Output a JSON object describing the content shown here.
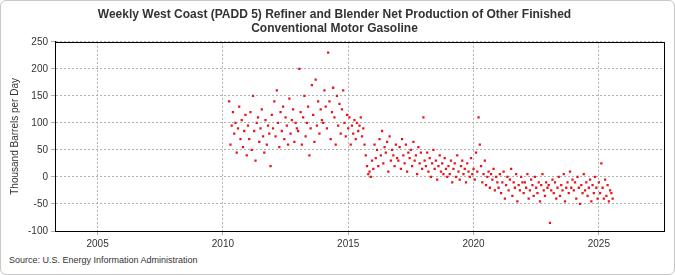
{
  "chart_data": {
    "type": "scatter",
    "title": [
      "Weekly West Coast (PADD 5) Refiner and Blender Net Production of Other Finished",
      "Conventional Motor Gasoline"
    ],
    "y_label": "Thousand Barrels per Day",
    "source": "Source: U.S. Energy Information Administration",
    "color": "#e8141b",
    "marker": "square",
    "grid": true,
    "xlim": [
      2003.3,
      2027.6
    ],
    "xticks": [
      2005,
      2010,
      2015,
      2020,
      2025
    ],
    "ylim": [
      -100,
      250
    ],
    "yticks": [
      -100,
      -50,
      0,
      50,
      100,
      150,
      200,
      250
    ],
    "x": [
      2010.25,
      2010.3,
      2010.35,
      2010.4,
      2010.45,
      2010.5,
      2010.55,
      2010.6,
      2010.65,
      2010.7,
      2010.75,
      2010.8,
      2010.85,
      2010.9,
      2010.95,
      2011,
      2011.05,
      2011.1,
      2011.15,
      2011.2,
      2011.25,
      2011.3,
      2011.35,
      2011.4,
      2011.45,
      2011.5,
      2011.55,
      2011.6,
      2011.65,
      2011.7,
      2011.75,
      2011.8,
      2011.85,
      2011.9,
      2011.95,
      2012,
      2012.05,
      2012.1,
      2012.15,
      2012.2,
      2012.25,
      2012.3,
      2012.35,
      2012.4,
      2012.45,
      2012.5,
      2012.55,
      2012.6,
      2012.65,
      2012.7,
      2012.75,
      2012.8,
      2012.85,
      2012.9,
      2012.95,
      2013,
      2013.05,
      2013.1,
      2013.15,
      2013.2,
      2013.25,
      2013.3,
      2013.35,
      2013.4,
      2013.45,
      2013.5,
      2013.55,
      2013.6,
      2013.65,
      2013.7,
      2013.75,
      2013.8,
      2013.85,
      2013.9,
      2013.95,
      2014,
      2014.05,
      2014.1,
      2014.15,
      2014.2,
      2014.25,
      2014.3,
      2014.35,
      2014.4,
      2014.45,
      2014.5,
      2014.55,
      2014.6,
      2014.65,
      2014.7,
      2014.75,
      2014.8,
      2014.85,
      2014.9,
      2014.95,
      2015,
      2015.05,
      2015.1,
      2015.15,
      2015.2,
      2015.25,
      2015.3,
      2015.35,
      2015.4,
      2015.45,
      2015.5,
      2015.55,
      2015.6,
      2015.65,
      2015.7,
      2015.75,
      2015.8,
      2015.85,
      2015.9,
      2015.95,
      2016,
      2016.05,
      2016.1,
      2016.15,
      2016.2,
      2016.25,
      2016.3,
      2016.35,
      2016.4,
      2016.45,
      2016.5,
      2016.55,
      2016.6,
      2016.65,
      2016.7,
      2016.75,
      2016.8,
      2016.85,
      2016.9,
      2016.95,
      2017,
      2017.05,
      2017.1,
      2017.15,
      2017.2,
      2017.25,
      2017.3,
      2017.35,
      2017.4,
      2017.45,
      2017.5,
      2017.55,
      2017.6,
      2017.65,
      2017.7,
      2017.75,
      2017.8,
      2017.85,
      2017.9,
      2017.95,
      2018,
      2018.05,
      2018.1,
      2018.15,
      2018.2,
      2018.25,
      2018.3,
      2018.35,
      2018.4,
      2018.45,
      2018.5,
      2018.55,
      2018.6,
      2018.65,
      2018.7,
      2018.75,
      2018.8,
      2018.85,
      2018.9,
      2018.95,
      2019,
      2019.05,
      2019.1,
      2019.15,
      2019.2,
      2019.25,
      2019.3,
      2019.35,
      2019.4,
      2019.45,
      2019.5,
      2019.55,
      2019.6,
      2019.65,
      2019.7,
      2019.75,
      2019.8,
      2019.85,
      2019.9,
      2019.95,
      2020,
      2020.05,
      2020.1,
      2020.15,
      2020.2,
      2020.25,
      2020.3,
      2020.35,
      2020.4,
      2020.45,
      2020.5,
      2020.55,
      2020.6,
      2020.65,
      2020.7,
      2020.75,
      2020.8,
      2020.85,
      2020.9,
      2020.95,
      2021,
      2021.05,
      2021.1,
      2021.15,
      2021.2,
      2021.25,
      2021.3,
      2021.35,
      2021.4,
      2021.45,
      2021.5,
      2021.55,
      2021.6,
      2021.65,
      2021.7,
      2021.75,
      2021.8,
      2021.85,
      2021.9,
      2021.95,
      2022,
      2022.05,
      2022.1,
      2022.15,
      2022.2,
      2022.25,
      2022.3,
      2022.35,
      2022.4,
      2022.45,
      2022.5,
      2022.55,
      2022.6,
      2022.65,
      2022.7,
      2022.75,
      2022.8,
      2022.85,
      2022.9,
      2022.95,
      2023,
      2023.05,
      2023.1,
      2023.15,
      2023.2,
      2023.25,
      2023.3,
      2023.35,
      2023.4,
      2023.45,
      2023.5,
      2023.55,
      2023.6,
      2023.65,
      2023.7,
      2023.75,
      2023.8,
      2023.85,
      2023.9,
      2023.95,
      2024,
      2024.05,
      2024.1,
      2024.15,
      2024.2,
      2024.25,
      2024.3,
      2024.35,
      2024.4,
      2024.45,
      2024.5,
      2024.55,
      2024.6,
      2024.65,
      2024.7,
      2024.75,
      2024.8,
      2024.85,
      2024.9,
      2024.95,
      2025,
      2025.05,
      2025.1,
      2025.15,
      2025.2,
      2025.25,
      2025.3,
      2025.35,
      2025.4,
      2025.45,
      2025.5,
      2025.55
    ],
    "values": [
      140,
      60,
      95,
      120,
      80,
      100,
      45,
      90,
      130,
      70,
      105,
      55,
      85,
      115,
      40,
      95,
      70,
      120,
      50,
      150,
      85,
      30,
      100,
      110,
      65,
      90,
      125,
      75,
      45,
      105,
      60,
      95,
      80,
      20,
      115,
      90,
      140,
      75,
      160,
      100,
      55,
      120,
      85,
      130,
      70,
      110,
      95,
      60,
      145,
      80,
      105,
      125,
      65,
      100,
      90,
      85,
      200,
      120,
      60,
      110,
      150,
      75,
      100,
      130,
      40,
      90,
      170,
      115,
      65,
      180,
      95,
      140,
      80,
      125,
      105,
      100,
      160,
      130,
      90,
      230,
      140,
      70,
      120,
      165,
      110,
      60,
      150,
      95,
      135,
      80,
      125,
      160,
      100,
      75,
      115,
      90,
      110,
      60,
      95,
      80,
      105,
      70,
      100,
      85,
      95,
      110,
      75,
      90,
      60,
      40,
      20,
      5,
      10,
      0,
      30,
      15,
      60,
      35,
      50,
      20,
      70,
      40,
      85,
      25,
      55,
      45,
      65,
      10,
      75,
      30,
      50,
      40,
      20,
      60,
      35,
      30,
      55,
      15,
      70,
      40,
      25,
      60,
      10,
      45,
      35,
      50,
      20,
      65,
      30,
      40,
      5,
      55,
      25,
      45,
      15,
      110,
      30,
      20,
      45,
      10,
      35,
      0,
      25,
      50,
      15,
      30,
      -5,
      20,
      40,
      10,
      25,
      5,
      35,
      15,
      0,
      20,
      5,
      30,
      -10,
      15,
      25,
      0,
      40,
      10,
      -5,
      20,
      30,
      5,
      15,
      -10,
      25,
      10,
      0,
      35,
      5,
      15,
      -5,
      45,
      10,
      110,
      60,
      20,
      -10,
      5,
      30,
      -15,
      0,
      10,
      -20,
      5,
      -5,
      15,
      -25,
      0,
      -10,
      -20,
      5,
      -30,
      -10,
      10,
      -40,
      -15,
      0,
      -25,
      -5,
      15,
      -35,
      -10,
      -20,
      5,
      -45,
      -15,
      -25,
      0,
      -10,
      -30,
      -10,
      -20,
      5,
      -40,
      -25,
      -5,
      -15,
      -35,
      0,
      -20,
      -30,
      -10,
      -45,
      -15,
      5,
      -25,
      -35,
      -10,
      -20,
      -15,
      -85,
      -25,
      -5,
      -30,
      -10,
      -40,
      -20,
      0,
      -35,
      -15,
      -25,
      5,
      -45,
      -20,
      -10,
      -30,
      10,
      -20,
      -5,
      -25,
      -10,
      -40,
      0,
      -20,
      -50,
      -15,
      -30,
      5,
      -25,
      -10,
      -35,
      -20,
      -5,
      -45,
      -15,
      -30,
      0,
      -20,
      -40,
      -10,
      -30,
      25,
      -20,
      -40,
      -5,
      -35,
      -15,
      -45,
      -25,
      -30,
      -40
    ]
  }
}
